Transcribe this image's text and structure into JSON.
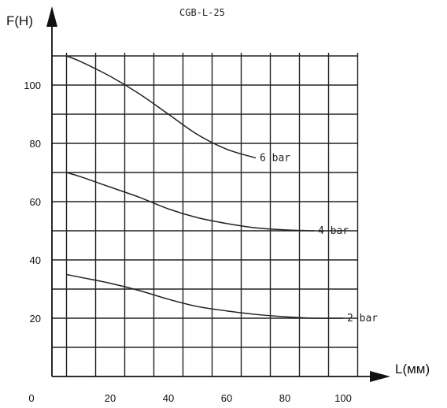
{
  "chart_data": {
    "type": "line",
    "title": "CGB-L-25",
    "xlabel": "L(мм)",
    "ylabel": "F(H)",
    "xlim": [
      0,
      100
    ],
    "ylim": [
      0,
      110
    ],
    "x_ticks": [
      {
        "value": 0,
        "label": "0"
      },
      {
        "value": 20,
        "label": "20"
      },
      {
        "value": 40,
        "label": "40"
      },
      {
        "value": 60,
        "label": "60"
      },
      {
        "value": 80,
        "label": "80"
      },
      {
        "value": 100,
        "label": "100"
      }
    ],
    "y_ticks": [
      {
        "value": 20,
        "label": "20"
      },
      {
        "value": 40,
        "label": "40"
      },
      {
        "value": 60,
        "label": "60"
      },
      {
        "value": 80,
        "label": "80"
      },
      {
        "value": 100,
        "label": "100"
      }
    ],
    "grid": true,
    "series": [
      {
        "name": "6 bar",
        "x": [
          5,
          10,
          20,
          30,
          40,
          50,
          60,
          70
        ],
        "y": [
          110,
          108,
          103,
          97,
          90,
          83,
          78,
          75
        ]
      },
      {
        "name": "4 bar",
        "x": [
          5,
          10,
          20,
          30,
          40,
          50,
          60,
          70,
          80,
          90
        ],
        "y": [
          70,
          68.5,
          65,
          61.5,
          57.5,
          54.5,
          52.5,
          51,
          50.3,
          50
        ]
      },
      {
        "name": "2 bar",
        "x": [
          5,
          10,
          20,
          30,
          40,
          50,
          60,
          70,
          80,
          90,
          100
        ],
        "y": [
          35,
          34,
          32,
          29.5,
          26.5,
          24,
          22.5,
          21.3,
          20.5,
          20,
          20
        ]
      }
    ]
  }
}
